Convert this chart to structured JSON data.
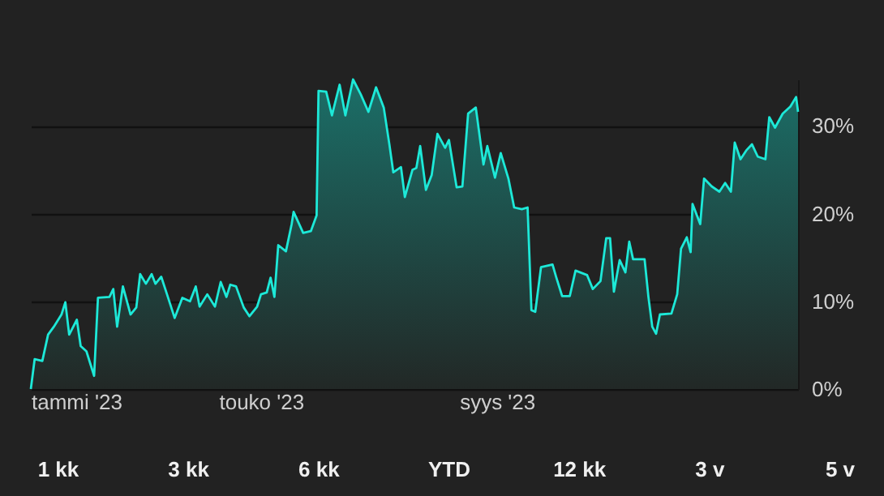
{
  "chart_data": {
    "type": "area",
    "x": [
      "2023-01-01",
      "2023-01-03",
      "2023-01-07",
      "2023-01-10",
      "2023-01-13",
      "2023-01-17",
      "2023-01-19",
      "2023-01-21",
      "2023-01-25",
      "2023-01-27",
      "2023-01-30",
      "2023-02-03",
      "2023-02-05",
      "2023-02-11",
      "2023-02-13",
      "2023-02-15",
      "2023-02-18",
      "2023-02-22",
      "2023-02-25",
      "2023-02-27",
      "2023-03-02",
      "2023-03-05",
      "2023-03-07",
      "2023-03-10",
      "2023-03-13",
      "2023-03-17",
      "2023-03-21",
      "2023-03-25",
      "2023-03-28",
      "2023-03-30",
      "2023-04-03",
      "2023-04-07",
      "2023-04-10",
      "2023-04-13",
      "2023-04-15",
      "2023-04-18",
      "2023-04-22",
      "2023-04-25",
      "2023-04-29",
      "2023-05-01",
      "2023-05-04",
      "2023-05-06",
      "2023-05-08",
      "2023-05-10",
      "2023-05-14",
      "2023-05-17",
      "2023-05-18",
      "2023-05-23",
      "2023-05-27",
      "2023-05-30",
      "2023-05-31",
      "2023-06-04",
      "2023-06-07",
      "2023-06-11",
      "2023-06-14",
      "2023-06-18",
      "2023-06-22",
      "2023-06-26",
      "2023-06-30",
      "2023-07-04",
      "2023-07-07",
      "2023-07-09",
      "2023-07-13",
      "2023-07-15",
      "2023-07-19",
      "2023-07-21",
      "2023-07-23",
      "2023-07-26",
      "2023-07-29",
      "2023-08-01",
      "2023-08-05",
      "2023-08-07",
      "2023-08-11",
      "2023-08-14",
      "2023-08-17",
      "2023-08-21",
      "2023-08-25",
      "2023-08-27",
      "2023-08-31",
      "2023-09-03",
      "2023-09-07",
      "2023-09-10",
      "2023-09-14",
      "2023-09-17",
      "2023-09-19",
      "2023-09-21",
      "2023-09-24",
      "2023-09-30",
      "2023-10-02",
      "2023-10-05",
      "2023-10-09",
      "2023-10-12",
      "2023-10-18",
      "2023-10-21",
      "2023-10-25",
      "2023-10-28",
      "2023-10-30",
      "2023-11-01",
      "2023-11-04",
      "2023-11-07",
      "2023-11-09",
      "2023-11-11",
      "2023-11-17",
      "2023-11-19",
      "2023-11-21",
      "2023-11-23",
      "2023-11-25",
      "2023-12-01",
      "2023-12-04",
      "2023-12-06",
      "2023-12-09",
      "2023-12-11",
      "2023-12-12",
      "2023-12-16",
      "2023-12-18",
      "2023-12-22",
      "2023-12-26",
      "2023-12-29",
      "2024-01-01",
      "2024-01-03",
      "2024-01-06",
      "2024-01-09",
      "2024-01-12",
      "2024-01-15",
      "2024-01-19",
      "2024-01-21",
      "2024-01-24",
      "2024-01-28",
      "2024-02-01",
      "2024-02-04",
      "2024-02-05"
    ],
    "series": [
      {
        "color": "#1de9d8",
        "values": [
          0,
          3.4,
          3.2,
          6.2,
          7.1,
          8.5,
          9.9,
          6.2,
          7.9,
          4.9,
          4.3,
          1.5,
          10.4,
          10.5,
          11.4,
          7.1,
          11.7,
          8.5,
          9.3,
          13.1,
          12,
          13.1,
          12,
          12.8,
          10.8,
          8.1,
          10.4,
          10,
          11.7,
          9.4,
          10.8,
          9.4,
          12.2,
          10.5,
          11.9,
          11.7,
          9.3,
          8.3,
          9.4,
          10.8,
          11,
          12.7,
          10.5,
          16.4,
          15.7,
          18.8,
          20.2,
          17.8,
          18,
          19.8,
          34,
          33.9,
          31.2,
          34.7,
          31.2,
          35.3,
          33.6,
          31.6,
          34.4,
          32.1,
          27.8,
          24.7,
          25.3,
          21.9,
          25,
          25.2,
          27.7,
          22.7,
          24.4,
          29.1,
          27.5,
          28.4,
          23,
          23.1,
          31.4,
          32.1,
          25.6,
          27.7,
          24.1,
          26.9,
          24,
          20.7,
          20.5,
          20.7,
          9,
          8.8,
          13.9,
          14.2,
          12.7,
          10.6,
          10.6,
          13.5,
          13,
          11.4,
          12.3,
          17.2,
          17.2,
          11.1,
          14.7,
          13.3,
          16.8,
          14.8,
          14.8,
          10.5,
          7.1,
          6.3,
          8.5,
          8.6,
          10.8,
          16,
          17.3,
          15.6,
          21.1,
          18.8,
          24,
          23.1,
          22.5,
          23.5,
          22.5,
          28.1,
          26.2,
          27.2,
          27.9,
          26.5,
          26.2,
          31,
          29.8,
          31.4,
          32.2,
          33.3,
          31.6
        ]
      }
    ],
    "xlim": [
      "2023-01-01",
      "2024-02-05"
    ],
    "xticks": [
      {
        "value": "2023-01-01",
        "label": "tammi '23"
      },
      {
        "value": "2023-05-01",
        "label": "touko '23"
      },
      {
        "value": "2023-09-01",
        "label": "syys '23"
      }
    ],
    "ylim": [
      0,
      35.3
    ],
    "yticks": [
      {
        "value": 0,
        "label": "0%"
      },
      {
        "value": 10,
        "label": "10%"
      },
      {
        "value": 20,
        "label": "20%"
      },
      {
        "value": 30,
        "label": "30%"
      }
    ],
    "grid": "y",
    "annotations": [
      "1 kk",
      "3 kk",
      "6 kk",
      "YTD",
      "12 kk",
      "3 v",
      "5 v"
    ]
  }
}
